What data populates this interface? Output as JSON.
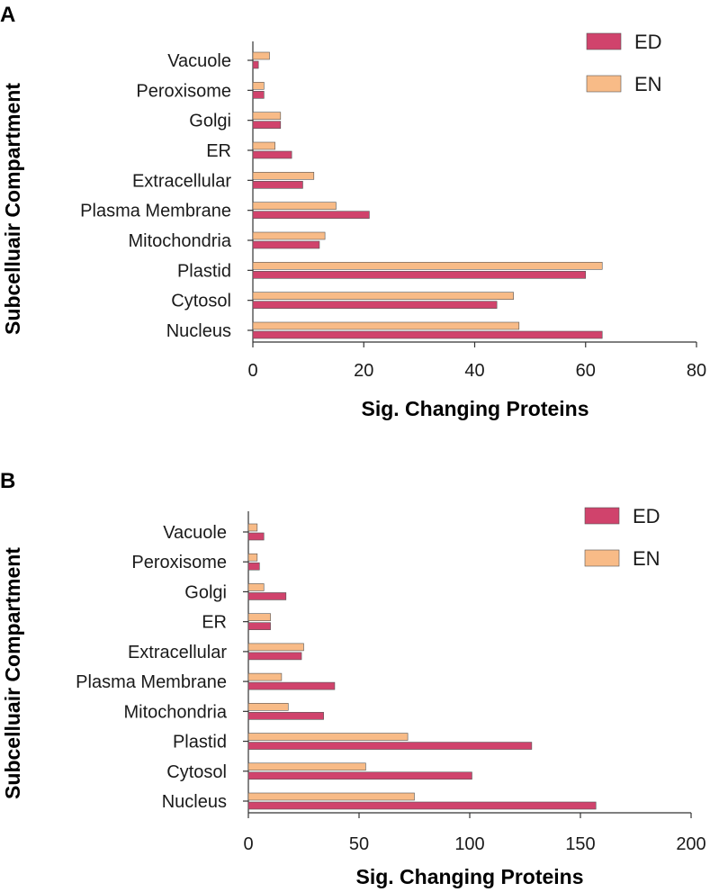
{
  "chart_data": [
    {
      "type": "bar",
      "orientation": "horizontal",
      "panel": "A",
      "title": "",
      "xlabel": "Sig. Changing Proteins",
      "ylabel": "Subcelluair Compartment",
      "xlim": [
        0,
        80
      ],
      "xticks": [
        0,
        20,
        40,
        60,
        80
      ],
      "categories": [
        "Nucleus",
        "Cytosol",
        "Plastid",
        "Mitochondria",
        "Plasma Membrane",
        "Extracellular",
        "ER",
        "Golgi",
        "Peroxisome",
        "Vacuole"
      ],
      "series": [
        {
          "name": "ED",
          "color": "#d0436c",
          "values": [
            63,
            44,
            60,
            12,
            21,
            9,
            7,
            5,
            2,
            1
          ]
        },
        {
          "name": "EN",
          "color": "#f8bb87",
          "values": [
            48,
            47,
            63,
            13,
            15,
            11,
            4,
            5,
            2,
            3
          ]
        }
      ],
      "legend": "top-right"
    },
    {
      "type": "bar",
      "orientation": "horizontal",
      "panel": "B",
      "title": "",
      "xlabel": "Sig. Changing Proteins",
      "ylabel": "Subcelluair Compartment",
      "xlim": [
        0,
        200
      ],
      "xticks": [
        0,
        50,
        100,
        150,
        200
      ],
      "categories": [
        "Nucleus",
        "Cytosol",
        "Plastid",
        "Mitochondria",
        "Plasma Membrane",
        "Extracellular",
        "ER",
        "Golgi",
        "Peroxisome",
        "Vacuole"
      ],
      "series": [
        {
          "name": "ED",
          "color": "#d0436c",
          "values": [
            157,
            101,
            128,
            34,
            39,
            24,
            10,
            17,
            5,
            7
          ]
        },
        {
          "name": "EN",
          "color": "#f8bb87",
          "values": [
            75,
            53,
            72,
            18,
            15,
            25,
            10,
            7,
            4,
            4
          ]
        }
      ],
      "legend": "top-right"
    }
  ]
}
